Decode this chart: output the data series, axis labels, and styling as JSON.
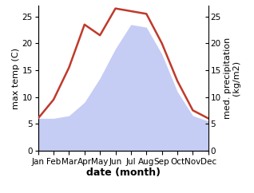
{
  "months": [
    "Jan",
    "Feb",
    "Mar",
    "Apr",
    "May",
    "Jun",
    "Jul",
    "Aug",
    "Sep",
    "Oct",
    "Nov",
    "Dec"
  ],
  "month_positions": [
    1,
    2,
    3,
    4,
    5,
    6,
    7,
    8,
    9,
    10,
    11,
    12
  ],
  "temperature": [
    6.0,
    9.5,
    15.5,
    23.5,
    21.5,
    26.5,
    26.0,
    25.5,
    20.0,
    13.0,
    7.5,
    6.0
  ],
  "precipitation": [
    6.0,
    6.0,
    6.5,
    9.0,
    13.5,
    19.0,
    23.5,
    23.0,
    18.0,
    11.0,
    6.5,
    5.5
  ],
  "temp_color": "#c0392b",
  "precip_fill_color": "#c5cdf5",
  "precip_edge_color": "#c5cdf5",
  "background_color": "#ffffff",
  "ylabel_left": "max temp (C)",
  "ylabel_right": "med. precipitation\n(kg/m2)",
  "xlabel": "date (month)",
  "ylim_left": [
    0,
    27
  ],
  "ylim_right": [
    0,
    27
  ],
  "yticks_left": [
    0,
    5,
    10,
    15,
    20,
    25
  ],
  "yticks_right": [
    0,
    5,
    10,
    15,
    20,
    25
  ],
  "label_fontsize": 8,
  "tick_fontsize": 7.5
}
